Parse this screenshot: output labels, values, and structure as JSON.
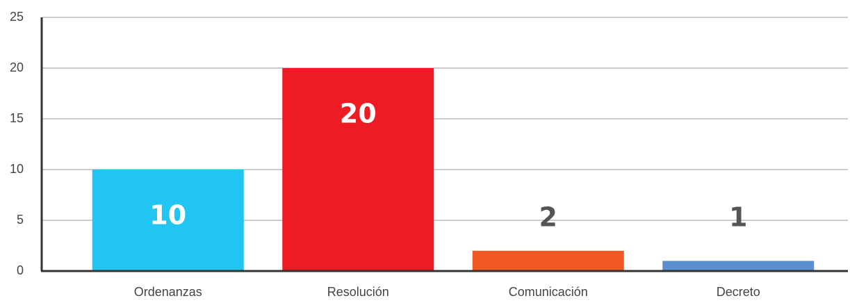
{
  "chart_data": {
    "type": "bar",
    "categories": [
      "Ordenanzas",
      "Resolución",
      "Comunicación",
      "Decreto"
    ],
    "values": [
      10,
      20,
      2,
      1
    ],
    "colors": [
      "#22c4f2",
      "#ed1c24",
      "#f15a24",
      "#5b8fcf"
    ],
    "ylim": [
      0,
      25
    ],
    "yticks": [
      0,
      5,
      10,
      15,
      20,
      25
    ],
    "grid": true
  }
}
